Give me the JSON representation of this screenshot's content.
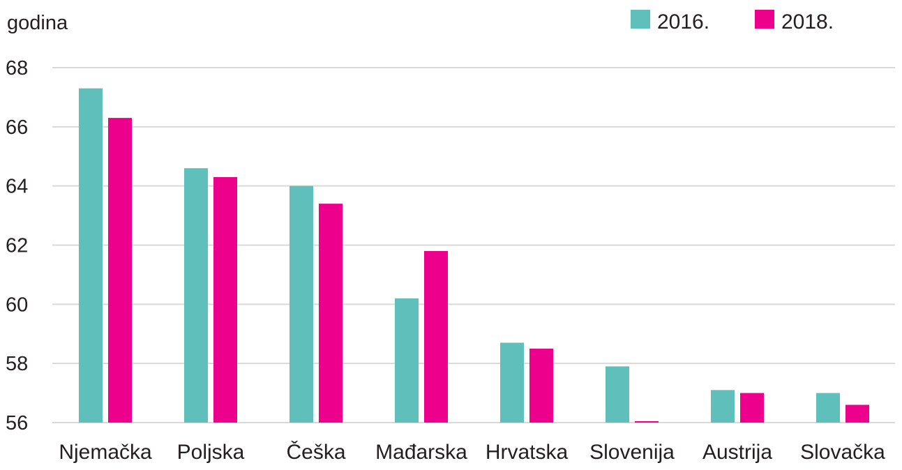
{
  "chart_data": {
    "type": "bar",
    "ylabel": "godina",
    "ylim": [
      56,
      68
    ],
    "yticks": [
      56,
      58,
      60,
      62,
      64,
      66,
      68
    ],
    "grid": true,
    "legend_position": "top-right",
    "categories": [
      "Njemačka",
      "Poljska",
      "Češka",
      "Mađarska",
      "Hrvatska",
      "Slovenija",
      "Austrija",
      "Slovačka"
    ],
    "series": [
      {
        "name": "2016.",
        "color": "#5fc0bb",
        "values": [
          67.3,
          64.6,
          64.0,
          60.2,
          58.7,
          57.9,
          57.1,
          57.0
        ]
      },
      {
        "name": "2018.",
        "color": "#ec008c",
        "values": [
          66.3,
          64.3,
          63.4,
          61.8,
          58.5,
          56.0,
          57.0,
          56.6
        ]
      }
    ]
  }
}
